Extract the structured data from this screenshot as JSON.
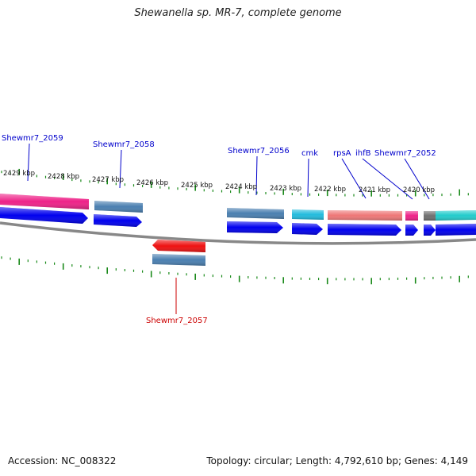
{
  "title": "Shewanella sp. MR-7, complete genome",
  "footer": {
    "accession": "Accession: NC_008322",
    "stats": "Topology: circular; Length: 4,792,610 bp; Genes: 4,149"
  },
  "colors": {
    "gene_blue": "#0000ee",
    "steel": "#4a7fb0",
    "pink": "#ee2288",
    "salmon": "#ee7777",
    "cyan": "#22bbdd",
    "teal": "#22cccc",
    "gray": "#707070",
    "red": "#ee1111",
    "tick_green": "#1a8a1a",
    "label_blue": "#0000cc",
    "label_red": "#cc0000",
    "backbone": "#888888"
  },
  "kbp_labels": [
    "2429 kbp",
    "2428 kbp",
    "2427 kbp",
    "2426 kbp",
    "2425 kbp",
    "2424 kbp",
    "2423 kbp",
    "2422 kbp",
    "2421 kbp",
    "2420 kbp"
  ],
  "gene_labels": [
    {
      "text": "Shewmr7_2059",
      "strand": "plus"
    },
    {
      "text": "Shewmr7_2058",
      "strand": "plus"
    },
    {
      "text": "Shewmr7_2056",
      "strand": "plus"
    },
    {
      "text": "cmk",
      "strand": "plus"
    },
    {
      "text": "rpsA",
      "strand": "plus"
    },
    {
      "text": "ihfB",
      "strand": "plus"
    },
    {
      "text": "Shewmr7_2052",
      "strand": "plus"
    },
    {
      "text": "Shewmr7_2057",
      "strand": "minus"
    }
  ]
}
